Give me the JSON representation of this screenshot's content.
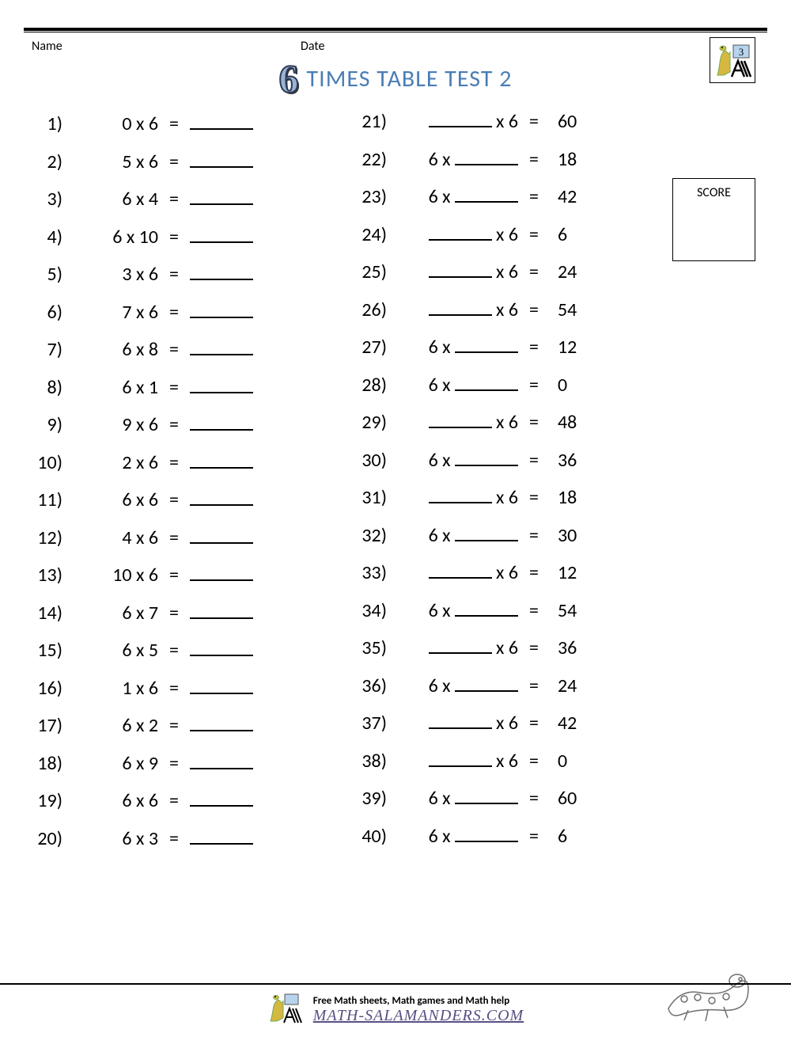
{
  "header": {
    "name_label": "Name",
    "date_label": "Date",
    "title_prefix_digit": "6",
    "title": "TIMES TABLE TEST 2",
    "title_color": "#4a7db5",
    "digit_fill": "#9bb3d4",
    "digit_stroke": "#2b3a55"
  },
  "scorebox": {
    "label": "SCORE"
  },
  "styling": {
    "font_size_problem": 24,
    "row_height": 47.5,
    "blank_width": 80,
    "text_color": "#000000",
    "background": "#ffffff"
  },
  "column1": [
    {
      "n": "1)",
      "expr": "0 x 6"
    },
    {
      "n": "2)",
      "expr": "5 x 6"
    },
    {
      "n": "3)",
      "expr": "6 x 4"
    },
    {
      "n": "4)",
      "expr": "6 x 10"
    },
    {
      "n": "5)",
      "expr": "3 x 6"
    },
    {
      "n": "6)",
      "expr": "7 x 6"
    },
    {
      "n": "7)",
      "expr": "6 x 8"
    },
    {
      "n": "8)",
      "expr": "6 x 1"
    },
    {
      "n": "9)",
      "expr": "9 x 6"
    },
    {
      "n": "10)",
      "expr": "2 x 6"
    },
    {
      "n": "11)",
      "expr": "6 x 6"
    },
    {
      "n": "12)",
      "expr": "4 x 6"
    },
    {
      "n": "13)",
      "expr": "10 x 6"
    },
    {
      "n": "14)",
      "expr": "6 x 7"
    },
    {
      "n": "15)",
      "expr": "6 x 5"
    },
    {
      "n": "16)",
      "expr": "1 x 6"
    },
    {
      "n": "17)",
      "expr": "6 x 2"
    },
    {
      "n": "18)",
      "expr": "6 x 9"
    },
    {
      "n": "19)",
      "expr": "6 x 6"
    },
    {
      "n": "20)",
      "expr": "6 x 3"
    }
  ],
  "column2": [
    {
      "n": "21)",
      "type": "blank_first",
      "result": "60"
    },
    {
      "n": "22)",
      "type": "blank_second",
      "result": "18"
    },
    {
      "n": "23)",
      "type": "blank_second",
      "result": "42"
    },
    {
      "n": "24)",
      "type": "blank_first",
      "result": "6"
    },
    {
      "n": "25)",
      "type": "blank_first",
      "result": "24"
    },
    {
      "n": "26)",
      "type": "blank_first",
      "result": "54"
    },
    {
      "n": "27)",
      "type": "blank_second",
      "result": "12"
    },
    {
      "n": "28)",
      "type": "blank_second",
      "result": "0"
    },
    {
      "n": "29)",
      "type": "blank_first",
      "result": "48"
    },
    {
      "n": "30)",
      "type": "blank_second",
      "result": "36"
    },
    {
      "n": "31)",
      "type": "blank_first",
      "result": "18"
    },
    {
      "n": "32)",
      "type": "blank_second",
      "result": "30"
    },
    {
      "n": "33)",
      "type": "blank_first",
      "result": "12"
    },
    {
      "n": "34)",
      "type": "blank_second",
      "result": "54"
    },
    {
      "n": "35)",
      "type": "blank_first",
      "result": "36"
    },
    {
      "n": "36)",
      "type": "blank_second",
      "result": "24"
    },
    {
      "n": "37)",
      "type": "blank_first",
      "result": "42"
    },
    {
      "n": "38)",
      "type": "blank_first",
      "result": "0"
    },
    {
      "n": "39)",
      "type": "blank_second",
      "result": "60"
    },
    {
      "n": "40)",
      "type": "blank_second",
      "result": "6"
    }
  ],
  "footer": {
    "tagline": "Free Math sheets, Math games and Math help",
    "site": "MATH-SALAMANDERS.COM"
  }
}
